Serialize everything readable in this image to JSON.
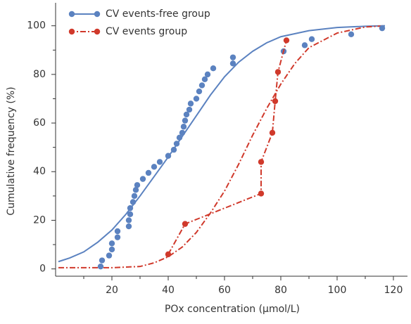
{
  "chart_data": {
    "type": "scatter",
    "xlabel": "POx concentration (μmol/L)",
    "ylabel": "Cumulative frequency (%)",
    "xlim": [
      0,
      125
    ],
    "ylim": [
      -3,
      108
    ],
    "xticks": [
      20,
      40,
      60,
      80,
      100,
      120
    ],
    "x_minor_ticks": [
      10,
      30,
      50,
      70,
      90,
      110
    ],
    "yticks": [
      0,
      20,
      40,
      60,
      80,
      100
    ],
    "y_minor_ticks": [
      10,
      30,
      50,
      70,
      90
    ],
    "legend": "upper left",
    "series": [
      {
        "name": "CV events-free group",
        "color": "#5b82c0",
        "line": "none",
        "x": [
          16,
          16.5,
          19,
          20,
          20,
          22,
          22,
          26,
          26,
          26.5,
          26.5,
          27.5,
          28,
          28.5,
          29,
          31,
          33,
          35,
          37,
          40,
          42,
          43,
          44,
          45,
          45.5,
          46,
          46.5,
          47.5,
          48,
          50,
          51,
          52,
          53,
          54,
          56,
          63,
          63,
          81,
          88.5,
          91,
          105,
          116
        ],
        "values": [
          1,
          3.5,
          5.5,
          8,
          10.5,
          13,
          15.5,
          17.5,
          20,
          22.5,
          25,
          27.5,
          30,
          32.5,
          34.5,
          37,
          39.5,
          42,
          44,
          46.5,
          49,
          51.5,
          54,
          56,
          58.5,
          61,
          63.5,
          65.5,
          68,
          70,
          73,
          75.5,
          78,
          80,
          82.5,
          84.5,
          87,
          89.5,
          92,
          94.5,
          96.5,
          99
        ]
      },
      {
        "name": "CV events group",
        "color": "#d0392b",
        "line": "dashdot",
        "x": [
          40,
          46,
          73,
          73,
          77,
          78,
          79,
          82
        ],
        "values": [
          6,
          18.5,
          31,
          44,
          56,
          69,
          81,
          94
        ]
      }
    ],
    "fits": [
      {
        "color": "#5b82c0",
        "line": "solid",
        "x": [
          1,
          5,
          10,
          15,
          20,
          25,
          30,
          35,
          40,
          45,
          50,
          55,
          60,
          65,
          70,
          75,
          80,
          90,
          100,
          110,
          117
        ],
        "values": [
          3,
          4.5,
          7,
          11,
          16,
          22.5,
          30,
          38,
          46,
          54.5,
          63,
          71.5,
          79,
          85,
          89.5,
          93,
          95.5,
          98,
          99.3,
          99.8,
          100
        ]
      },
      {
        "color": "#d0392b",
        "line": "dashdot",
        "x": [
          1,
          20,
          30,
          35,
          40,
          45,
          50,
          55,
          60,
          65,
          70,
          75,
          80,
          85,
          90,
          100,
          110,
          117
        ],
        "values": [
          0.5,
          0.5,
          1,
          2.5,
          5,
          9,
          15,
          23,
          32,
          43,
          55,
          66,
          76,
          84.5,
          91,
          97,
          99.5,
          100
        ]
      }
    ]
  }
}
